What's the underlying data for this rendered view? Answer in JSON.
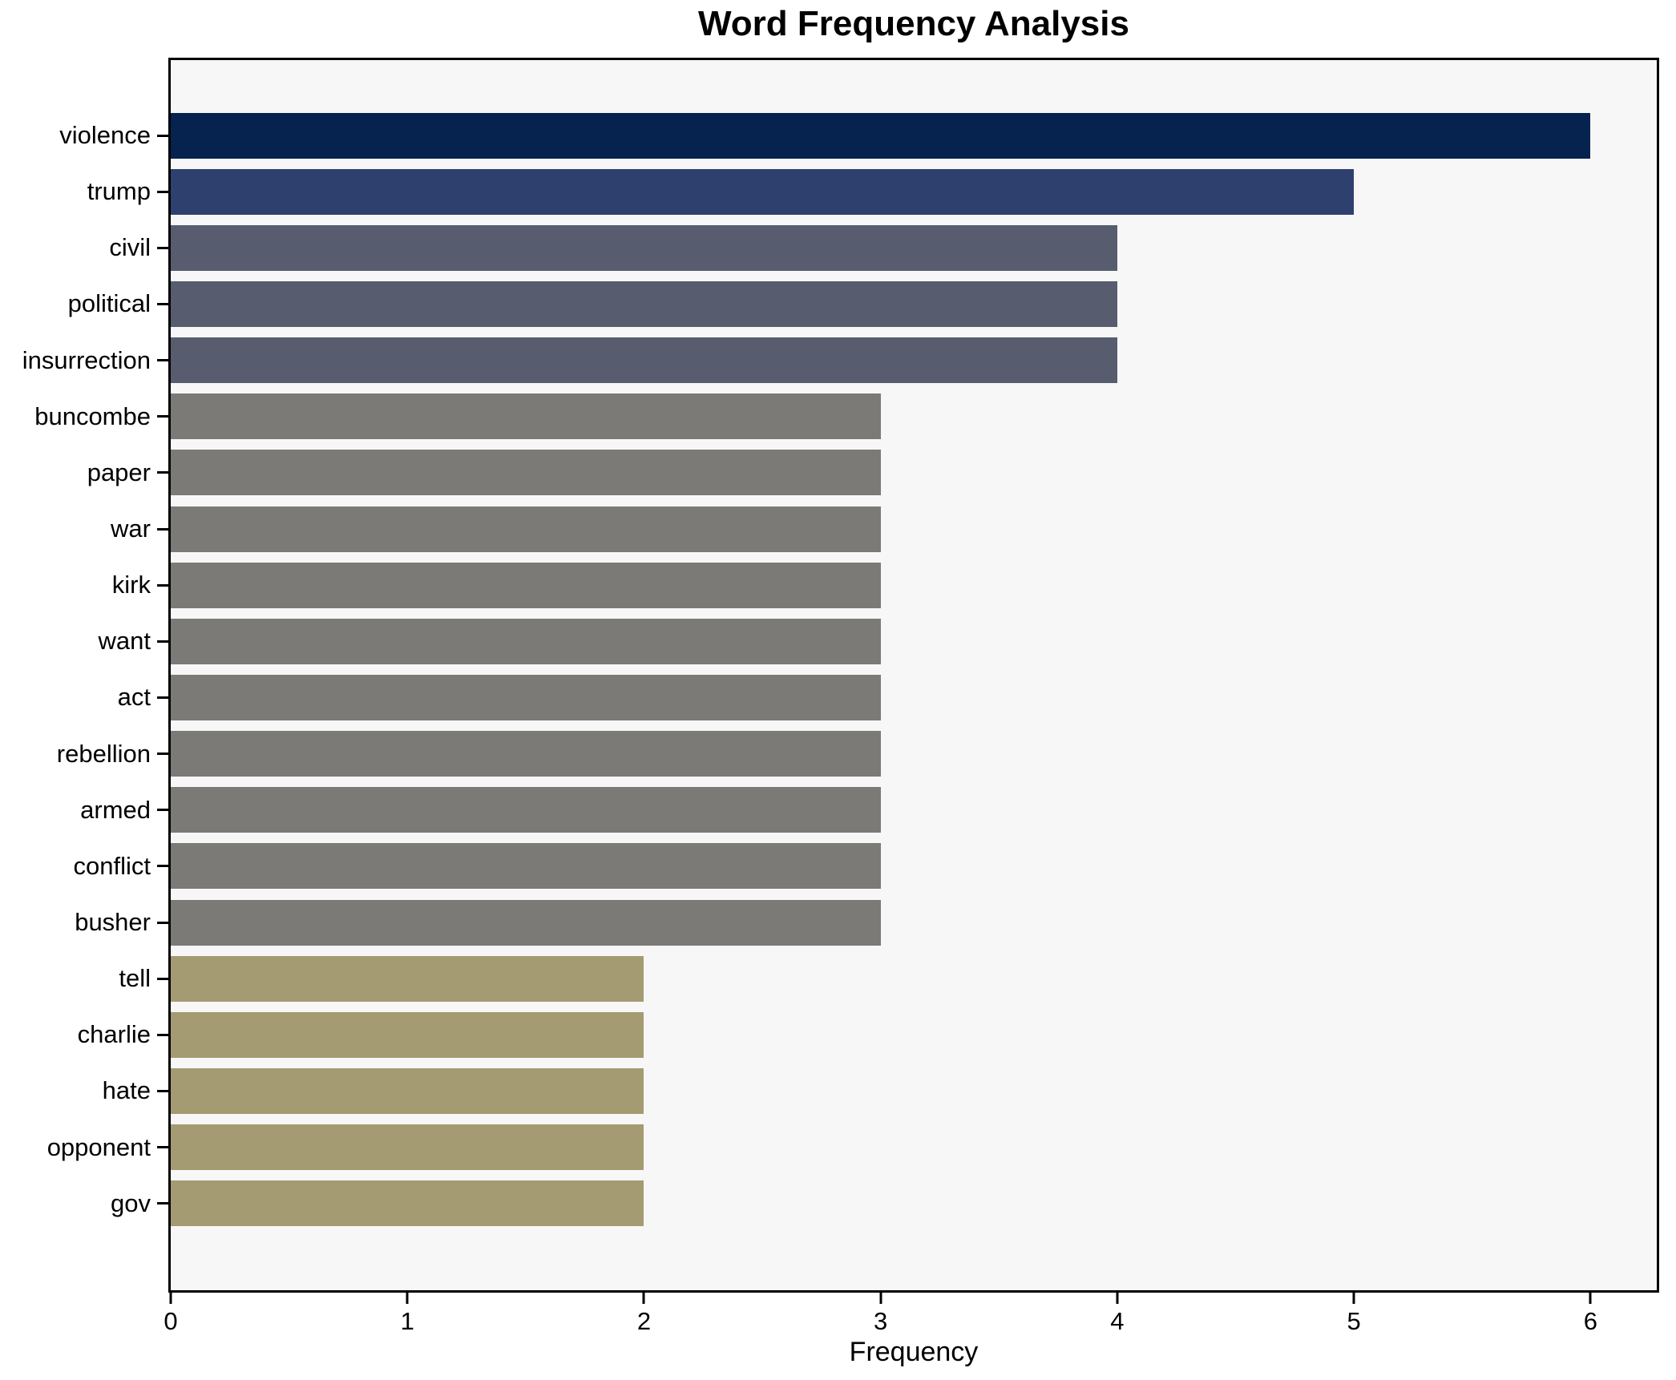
{
  "title": "Word Frequency Analysis",
  "chart_data": {
    "type": "bar",
    "orientation": "horizontal",
    "title": "Word Frequency Analysis",
    "xlabel": "Frequency",
    "ylabel": "",
    "xlim": [
      0,
      6.28
    ],
    "xticks": [
      0,
      1,
      2,
      3,
      4,
      5,
      6
    ],
    "grid": false,
    "legend": "none",
    "categories": [
      "violence",
      "trump",
      "civil",
      "political",
      "insurrection",
      "buncombe",
      "paper",
      "war",
      "kirk",
      "want",
      "act",
      "rebellion",
      "armed",
      "conflict",
      "busher",
      "tell",
      "charlie",
      "hate",
      "opponent",
      "gov"
    ],
    "values": [
      6,
      5,
      4,
      4,
      4,
      3,
      3,
      3,
      3,
      3,
      3,
      3,
      3,
      3,
      3,
      2,
      2,
      2,
      2,
      2
    ],
    "bar_colors": [
      "#05234e",
      "#2e406e",
      "#575d6e",
      "#575d6e",
      "#575d6e",
      "#7b7a76",
      "#7b7a76",
      "#7b7a76",
      "#7b7a76",
      "#7b7a76",
      "#7b7a76",
      "#7b7a76",
      "#7b7a76",
      "#7b7a76",
      "#7b7a76",
      "#a49b72",
      "#a49b72",
      "#a49b72",
      "#a49b72",
      "#a49b72"
    ],
    "plot_background": "#f7f7f7",
    "figure_background": "#ffffff",
    "spine_color": "#000000",
    "text_color": "#000000"
  }
}
